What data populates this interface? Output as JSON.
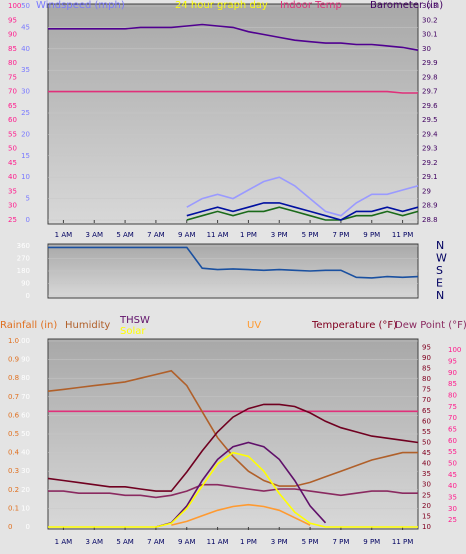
{
  "chart_data": [
    {
      "type": "line",
      "title": "24 hour graph day",
      "x": [
        0,
        1,
        2,
        3,
        4,
        5,
        6,
        7,
        8,
        9,
        10,
        11,
        12,
        13,
        14,
        15,
        16,
        17,
        18,
        19,
        20,
        21,
        22,
        23,
        24
      ],
      "xlim": [
        0,
        24
      ],
      "xticks": [
        {
          "value": 1,
          "label": "1 AM"
        },
        {
          "value": 3,
          "label": "3 AM"
        },
        {
          "value": 5,
          "label": "5 AM"
        },
        {
          "value": 7,
          "label": "7 AM"
        },
        {
          "value": 9,
          "label": "9 AM"
        },
        {
          "value": 11,
          "label": "11 AM"
        },
        {
          "value": 13,
          "label": "1 PM"
        },
        {
          "value": 15,
          "label": "3 PM"
        },
        {
          "value": 17,
          "label": "5 PM"
        },
        {
          "value": 19,
          "label": "7 PM"
        },
        {
          "value": 21,
          "label": "9 PM"
        },
        {
          "value": 23,
          "label": "11 PM"
        }
      ],
      "grid": true,
      "axes": [
        {
          "label": "Windspeed (mph)",
          "color": "#7a7aff",
          "lim": [
            0,
            50
          ],
          "ticks": [
            0,
            5,
            10,
            15,
            20,
            25,
            30,
            35,
            40,
            45,
            50
          ]
        },
        {
          "color": "#ff1a8c",
          "lim": [
            25,
            100
          ],
          "ticks": [
            25,
            30,
            35,
            40,
            45,
            50,
            55,
            60,
            65,
            70,
            75,
            80,
            85,
            90,
            95,
            100
          ]
        },
        {
          "label": "Barometer (in)",
          "color": "#400060",
          "lim": [
            28.8,
            30.3
          ],
          "ticks": [
            28.8,
            28.9,
            {
              "value": 29,
              "label": "29"
            },
            29.1,
            29.2,
            29.3,
            29.4,
            29.5,
            29.6,
            29.7,
            29.8,
            29.9,
            {
              "value": 30,
              "label": "30"
            },
            30.1,
            30.2,
            30.3
          ]
        }
      ],
      "series": [
        {
          "name": "Indoor Temp",
          "color": "#e0307a",
          "axis": 1,
          "values": [
            70,
            70,
            70,
            70,
            70,
            70,
            70,
            70,
            70,
            70,
            70,
            70,
            70,
            70,
            70,
            70,
            70,
            70,
            70,
            70,
            70,
            70,
            70,
            69.5,
            69.5
          ]
        },
        {
          "color": "#9a9aff",
          "axis": 0,
          "values": [
            null,
            null,
            null,
            null,
            null,
            null,
            null,
            null,
            null,
            3,
            5,
            6,
            5,
            7,
            9,
            10,
            8,
            5,
            2,
            1,
            4,
            6,
            6,
            7,
            8
          ]
        },
        {
          "color": "#1a6a1a",
          "axis": 0,
          "values": [
            null,
            null,
            null,
            null,
            null,
            null,
            null,
            null,
            null,
            0,
            1,
            2,
            1,
            2,
            2,
            3,
            2,
            1,
            0,
            0,
            1,
            1,
            2,
            1,
            2
          ]
        },
        {
          "color": "#0010a0",
          "axis": 0,
          "values": [
            null,
            null,
            null,
            null,
            null,
            null,
            null,
            null,
            null,
            1,
            2,
            3,
            2,
            3,
            4,
            4,
            3,
            2,
            1,
            0,
            2,
            2,
            3,
            2,
            3
          ]
        },
        {
          "color": "#500090",
          "axis": 2,
          "values": [
            30.14,
            30.14,
            30.14,
            30.14,
            30.14,
            30.14,
            30.15,
            30.15,
            30.15,
            30.16,
            30.17,
            30.16,
            30.15,
            30.12,
            30.1,
            30.08,
            30.06,
            30.05,
            30.04,
            30.04,
            30.03,
            30.03,
            30.02,
            30.01,
            29.99
          ]
        }
      ]
    },
    {
      "type": "line",
      "x": [
        0,
        1,
        2,
        3,
        4,
        5,
        6,
        7,
        8,
        9,
        10,
        11,
        12,
        13,
        14,
        15,
        16,
        17,
        18,
        19,
        20,
        21,
        22,
        23,
        24
      ],
      "xlim": [
        0,
        24
      ],
      "grid": true,
      "axes": [
        {
          "color": "#ffffff",
          "lim": [
            0,
            360
          ],
          "ticks": [
            0,
            90,
            180,
            270,
            360
          ]
        },
        {
          "color": "#000060",
          "lim": [
            0,
            360
          ],
          "ticks": [
            {
              "value": 360,
              "label": "N"
            },
            {
              "value": 270,
              "label": "W"
            },
            {
              "value": 180,
              "label": "S"
            },
            {
              "value": 90,
              "label": "E"
            },
            {
              "value": 0,
              "label": "N"
            }
          ]
        }
      ],
      "series": [
        {
          "color": "#1a50a0",
          "axis": 0,
          "values": [
            350,
            350,
            350,
            350,
            350,
            350,
            350,
            350,
            350,
            350,
            200,
            190,
            195,
            190,
            185,
            190,
            185,
            180,
            185,
            185,
            135,
            130,
            140,
            135,
            140
          ]
        }
      ]
    },
    {
      "type": "line",
      "x": [
        0,
        1,
        2,
        3,
        4,
        5,
        6,
        7,
        8,
        9,
        10,
        11,
        12,
        13,
        14,
        15,
        16,
        17,
        18,
        19,
        20,
        21,
        22,
        23,
        24
      ],
      "xlim": [
        0,
        24
      ],
      "xticks": [
        {
          "value": 1,
          "label": "1 AM"
        },
        {
          "value": 3,
          "label": "3 AM"
        },
        {
          "value": 5,
          "label": "5 AM"
        },
        {
          "value": 7,
          "label": "7 AM"
        },
        {
          "value": 9,
          "label": "9 AM"
        },
        {
          "value": 11,
          "label": "11 AM"
        },
        {
          "value": 13,
          "label": "1 PM"
        },
        {
          "value": 15,
          "label": "3 PM"
        },
        {
          "value": 17,
          "label": "5 PM"
        },
        {
          "value": 19,
          "label": "7 PM"
        },
        {
          "value": 21,
          "label": "9 PM"
        },
        {
          "value": 23,
          "label": "11 PM"
        }
      ],
      "grid": true,
      "axes": [
        {
          "color": "#ffffff",
          "lim": [
            0,
            100
          ],
          "ticks": [
            0,
            10,
            20,
            30,
            40,
            50,
            60,
            70,
            80,
            90,
            100
          ]
        },
        {
          "label": "Rainfall (in)",
          "color": "#e07020",
          "lim": [
            0,
            1
          ],
          "ticks": [
            0,
            0.1,
            0.2,
            0.3,
            0.4,
            0.5,
            0.6,
            0.7,
            0.8,
            0.9,
            {
              "value": 1,
              "label": "1.0"
            }
          ]
        },
        {
          "label": "Temperature (°F)",
          "color": "#800020",
          "lim": [
            10,
            98
          ],
          "ticks": [
            10,
            15,
            20,
            25,
            30,
            35,
            40,
            45,
            50,
            55,
            60,
            65,
            70,
            75,
            80,
            85,
            90,
            95
          ]
        },
        {
          "color": "#ff1a8c",
          "lim": [
            22,
            104
          ],
          "ticks": [
            25,
            30,
            35,
            40,
            45,
            50,
            55,
            60,
            65,
            70,
            75,
            80,
            85,
            90,
            95,
            100
          ]
        }
      ],
      "series": [
        {
          "color": "#e0307a",
          "axis": 3,
          "values": [
            73,
            73,
            73,
            73,
            73,
            73,
            73,
            73,
            73,
            73,
            73,
            73,
            73,
            73,
            73,
            73,
            73,
            73,
            73,
            73,
            73,
            73,
            73,
            73,
            73
          ]
        },
        {
          "name": "Humidity",
          "color": "#b0602a",
          "axis": 0,
          "values": [
            73,
            74,
            75,
            76,
            77,
            78,
            80,
            82,
            84,
            76,
            62,
            48,
            38,
            30,
            25,
            22,
            22,
            24,
            27,
            30,
            33,
            36,
            38,
            40,
            40
          ]
        },
        {
          "name": "Dew Point (°F)",
          "color": "#8a2a60",
          "axis": 2,
          "values": [
            27,
            27,
            26,
            26,
            26,
            25,
            25,
            24,
            25,
            27,
            30,
            30,
            29,
            28,
            27,
            28,
            28,
            27,
            26,
            25,
            26,
            27,
            27,
            26,
            26
          ]
        },
        {
          "name": "THSW",
          "color": "#60106a",
          "axis": 2,
          "values": [
            null,
            null,
            null,
            null,
            null,
            null,
            null,
            10,
            12,
            20,
            32,
            42,
            48,
            50,
            48,
            42,
            32,
            20,
            12,
            null,
            null,
            null,
            null,
            null,
            null
          ]
        },
        {
          "name": "UV",
          "color": "#ff9a30",
          "axis": 0,
          "values": [
            null,
            null,
            null,
            null,
            null,
            null,
            null,
            null,
            1,
            3,
            6,
            9,
            11,
            12,
            11,
            9,
            5,
            1,
            null,
            null,
            null,
            null,
            null,
            null,
            null
          ]
        },
        {
          "name": "Solar",
          "color": "#ffff00",
          "axis": 0,
          "values": [
            0,
            0,
            0,
            0,
            0,
            0,
            0,
            0,
            2,
            10,
            22,
            34,
            40,
            38,
            30,
            18,
            8,
            2,
            0,
            0,
            0,
            0,
            0,
            0,
            0
          ]
        },
        {
          "color": "#700020",
          "axis": 2,
          "values": [
            33,
            32,
            31,
            30,
            29,
            29,
            28,
            27,
            27,
            36,
            46,
            55,
            62,
            66,
            68,
            68,
            67,
            64,
            60,
            57,
            55,
            53,
            52,
            51,
            50
          ]
        }
      ]
    }
  ]
}
